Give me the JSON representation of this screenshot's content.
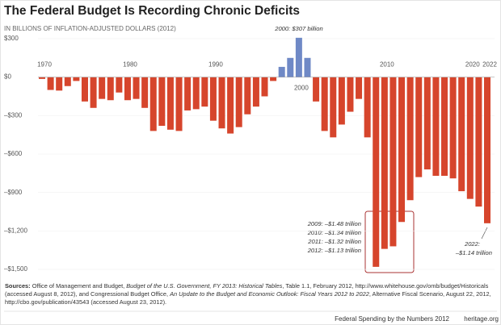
{
  "chart_data": {
    "type": "bar",
    "title": "The Federal Budget Is Recording Chronic Deficits",
    "subtitle": "IN BILLIONS OF INFLATION-ADJUSTED DOLLARS (2012)",
    "categories": [
      "1970",
      null,
      null,
      null,
      null,
      null,
      null,
      null,
      null,
      null,
      "1980",
      null,
      null,
      null,
      null,
      null,
      null,
      null,
      null,
      null,
      "1990",
      null,
      null,
      null,
      null,
      null,
      null,
      null,
      null,
      null,
      "2000",
      null,
      null,
      null,
      null,
      null,
      null,
      null,
      null,
      null,
      "2010",
      null,
      null,
      null,
      null,
      null,
      null,
      null,
      null,
      null,
      "2020",
      null,
      "2022"
    ],
    "values": [
      -14,
      -100,
      -105,
      -70,
      -30,
      -190,
      -240,
      -170,
      -180,
      -120,
      -180,
      -170,
      -240,
      -420,
      -380,
      -410,
      -420,
      -260,
      -250,
      -230,
      -340,
      -400,
      -440,
      -390,
      -290,
      -230,
      -150,
      -30,
      80,
      150,
      307,
      150,
      -190,
      -420,
      -470,
      -370,
      -270,
      -170,
      -470,
      -1480,
      -1340,
      -1320,
      -1130,
      -960,
      -780,
      -720,
      -770,
      -770,
      -790,
      -890,
      -950,
      -1010,
      -1140
    ],
    "colors": {
      "negative": "#d6452c",
      "positive": "#6f89c6"
    },
    "ylim": [
      -1550,
      350
    ],
    "yticks": [
      {
        "value": 300,
        "label": "$300"
      },
      {
        "value": 0,
        "label": "$0"
      },
      {
        "value": -300,
        "label": "–$300"
      },
      {
        "value": -600,
        "label": "–$600"
      },
      {
        "value": -900,
        "label": "–$900"
      },
      {
        "value": -1200,
        "label": "–$1,200"
      },
      {
        "value": -1500,
        "label": "–$1,500"
      }
    ],
    "annotations": {
      "peak": "2000: $307 billion",
      "recent": [
        "2009: –$1.48 trillion",
        "2010: –$1.34 trillion",
        "2011: –$1.32 trillion",
        "2012: –$1.13 trillion"
      ],
      "final": [
        "2022:",
        "–$1.14 trillion"
      ]
    },
    "sources": [
      "Sources:",
      " Office of Management and Budget, ",
      "Budget of the U.S. Government, FY 2013: Historical Tables",
      ", Table 1.1, February 2012, http://www.whitehouse.gov/omb/budget/Historicals (accessed August 8, 2012), and Congressional Budget Office, ",
      "An Update to the Budget and Economic Outlook: Fiscal Years 2012 to 2022",
      ", Alternative Fiscal Scenario, August 22, 2012, http://cbo.gov/publication/43543 (accessed August 23, 2012)."
    ],
    "footer": "Federal Spending by the Numbers 2012",
    "brand": "heritage.org"
  }
}
